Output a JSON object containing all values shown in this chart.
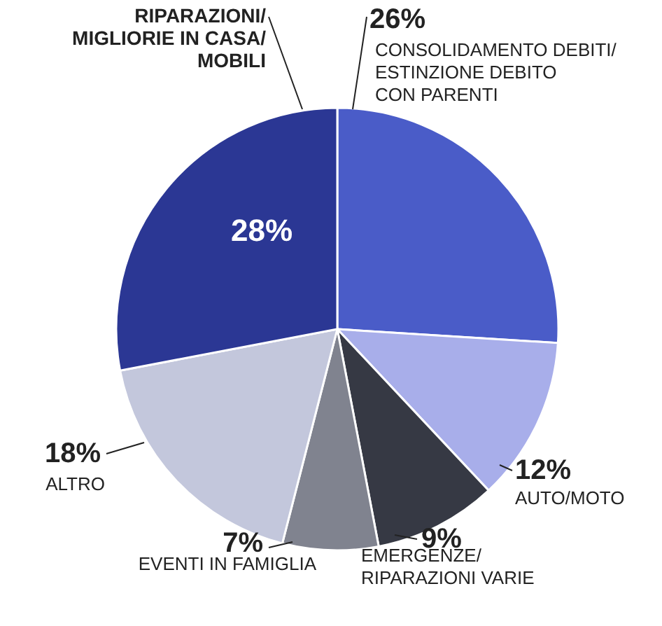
{
  "chart_data": {
    "type": "pie",
    "categories": [
      "CONSOLIDAMENTO DEBITI/\nESTINZIONE DEBITO\nCON PARENTI",
      "AUTO/MOTO",
      "EMERGENZE/\nRIPARAZIONI VARIE",
      "EVENTI IN FAMIGLIA",
      "ALTRO",
      "RIPARAZIONI/\nMIGLIORIE IN CASA/\nMOBILI"
    ],
    "values": [
      26,
      12,
      9,
      7,
      18,
      28
    ],
    "colors": [
      "#4a5cc8",
      "#a8aeea",
      "#363944",
      "#80838f",
      "#c3c7dc",
      "#2b3794"
    ],
    "value_labels": [
      "26%",
      "12%",
      "9%",
      "7%",
      "18%",
      "28%"
    ]
  }
}
